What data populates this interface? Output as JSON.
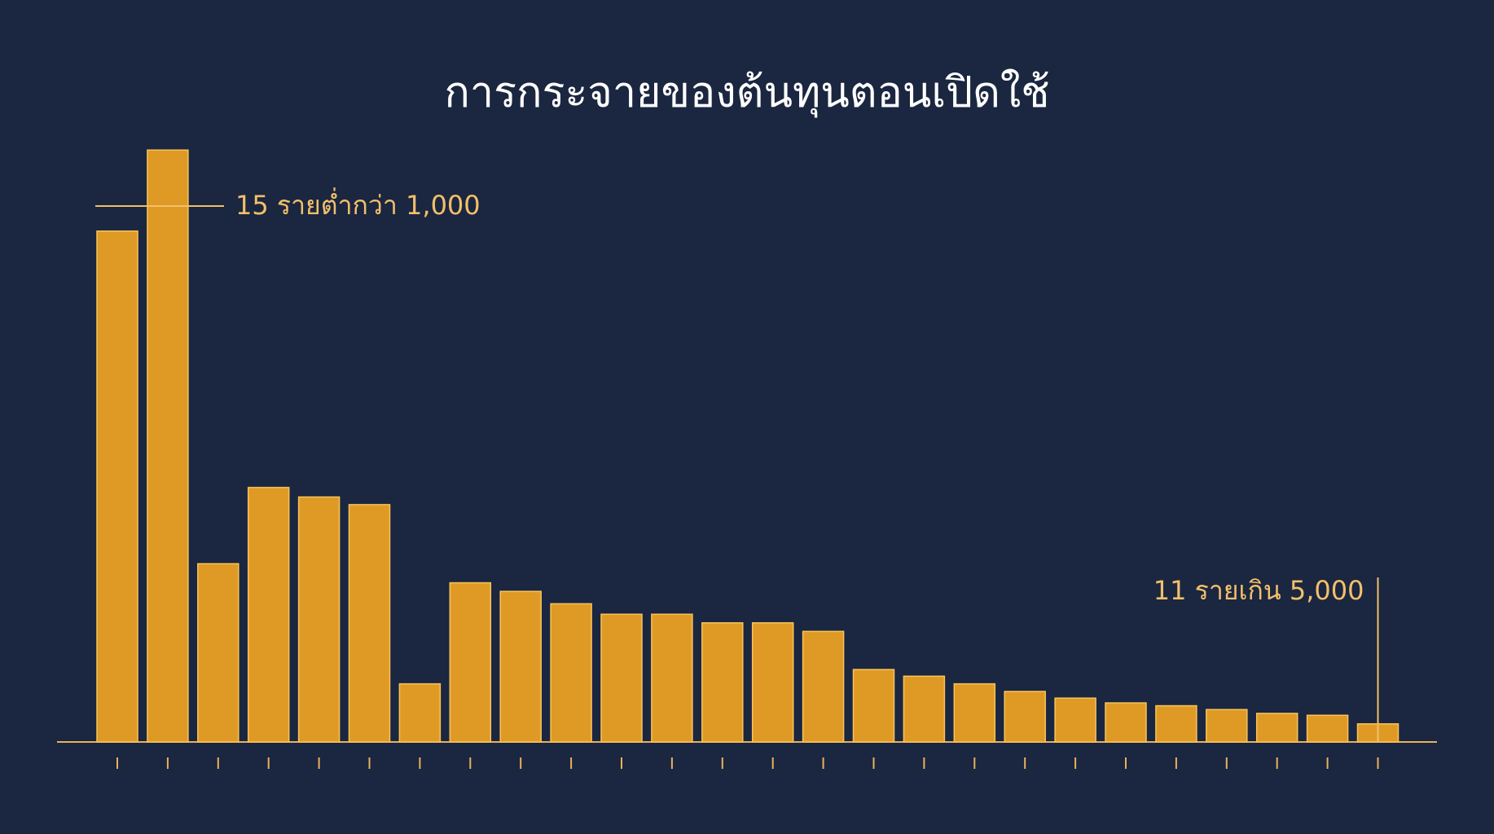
{
  "chart_data": {
    "type": "bar",
    "title": "การกระจายของต้นทุนตอนเปิดใช้",
    "annotations": [
      "15 รายต่ำกว่า 1,000",
      "11 รายเกิน 5,000"
    ],
    "categories": [
      null,
      null,
      null,
      null,
      null,
      null,
      null,
      null,
      null,
      null,
      null,
      null,
      null,
      null,
      null,
      null,
      null,
      null,
      null,
      null,
      null,
      null,
      null,
      null,
      null,
      null
    ],
    "values": [
      536,
      621,
      187,
      267,
      257,
      249,
      61,
      167,
      158,
      145,
      134,
      134,
      125,
      125,
      116,
      76,
      69,
      61,
      53,
      46,
      41,
      38,
      34,
      30,
      28,
      19
    ],
    "color": "#df9a25",
    "ylim": [
      0,
      640
    ]
  }
}
